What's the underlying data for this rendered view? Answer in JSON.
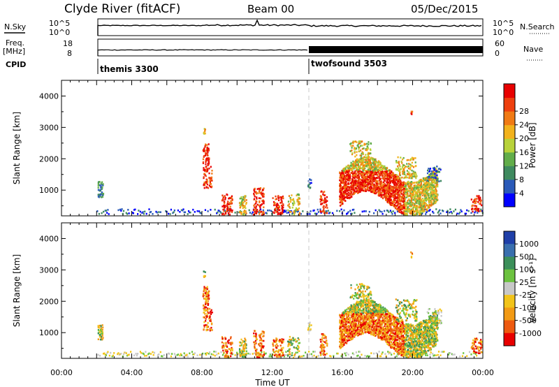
{
  "header": {
    "station": "Clyde River (fitACF)",
    "beam": "Beam 00",
    "date": "05/Dec/2015"
  },
  "status_panels": {
    "nsky_label": "N.Sky",
    "nsky_ticks": [
      "10^5",
      "10^0"
    ],
    "nsearch_label": "N.Search",
    "nsearch_ticks": [
      "10^5",
      "10^0"
    ],
    "freq_label": "Freq.",
    "freq_unit": "[MHz]",
    "freq_ticks": [
      "18",
      "8"
    ],
    "nave_label": "Nave",
    "nave_ticks": [
      "60",
      "0"
    ],
    "cpid_label": "CPID",
    "cpid_segments": [
      {
        "name": "themis 3300",
        "start_hour": 2.0
      },
      {
        "name": "twofsound 3503",
        "start_hour": 14.0
      }
    ]
  },
  "chart_data": [
    {
      "type": "heatmap",
      "name": "power",
      "ylabel": "Slant Range [km]",
      "yticks": [
        "1000",
        "2000",
        "3000",
        "4000"
      ],
      "ylim": [
        180,
        4500
      ],
      "xlim": [
        0,
        24
      ],
      "colorbar_label": "Power [dB]",
      "colorbar_ticks": [
        "4",
        "8",
        "12",
        "16",
        "20",
        "24",
        "28"
      ],
      "colorbar_colors": [
        "#0000ff",
        "#2a5ab8",
        "#3f8a5f",
        "#62ad4a",
        "#b8d23a",
        "#f2b21c",
        "#f07a14",
        "#ee3f0e",
        "#e80000"
      ]
    },
    {
      "type": "heatmap",
      "name": "velocity",
      "ylabel": "Slant Range [km]",
      "yticks": [
        "1000",
        "2000",
        "3000",
        "4000"
      ],
      "ylim": [
        180,
        4500
      ],
      "xlim": [
        0,
        24
      ],
      "colorbar_label": "Velocity [m s⁻¹]",
      "colorbar_ticks": [
        "1000",
        "500",
        "100",
        "25",
        "-25",
        "-100",
        "-500",
        "-1000"
      ],
      "colorbar_colors": [
        "#1f3fa8",
        "#3a6fae",
        "#3c8f5a",
        "#6cc23f",
        "#c8c8c8",
        "#f2c41a",
        "#f29a14",
        "#ee5a10",
        "#e80000"
      ],
      "xlabel": "Time UT",
      "xticks": [
        "00:00",
        "04:00",
        "08:00",
        "12:00",
        "16:00",
        "20:00",
        "00:00"
      ]
    }
  ]
}
